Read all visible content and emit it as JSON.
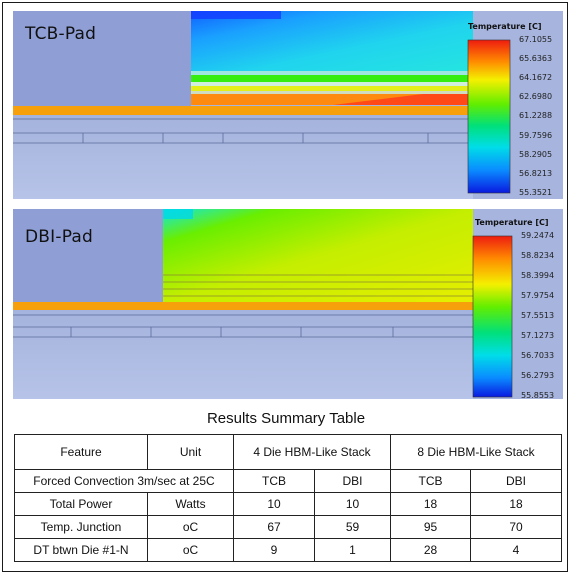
{
  "panels": [
    {
      "title": "TCB-Pad",
      "legend": {
        "title": "Temperature [C]",
        "ticks": [
          "67.1055",
          "65.6363",
          "64.1672",
          "62.6980",
          "61.2288",
          "59.7596",
          "58.2905",
          "56.8213",
          "55.3521"
        ]
      }
    },
    {
      "title": "DBI-Pad",
      "legend": {
        "title": "Temperature [C]",
        "ticks": [
          "59.2474",
          "58.8234",
          "58.3994",
          "57.9754",
          "57.5513",
          "57.1273",
          "56.7033",
          "56.2793",
          "55.8553"
        ]
      }
    }
  ],
  "table": {
    "title": "Results Summary Table",
    "headers": {
      "feature": "Feature",
      "unit": "Unit",
      "group4": "4 Die HBM-Like Stack",
      "group8": "8 Die HBM-Like Stack"
    },
    "subheader": {
      "condition": "Forced Convection 3m/sec at 25C",
      "cols": [
        "TCB",
        "DBI",
        "TCB",
        "DBI"
      ]
    },
    "rows": [
      {
        "feature": "Total Power",
        "unit": "Watts",
        "values": [
          "10",
          "10",
          "18",
          "18"
        ]
      },
      {
        "feature": "Temp. Junction",
        "unit": "oC",
        "values": [
          "67",
          "59",
          "95",
          "70"
        ]
      },
      {
        "feature": "DT btwn Die #1-N",
        "unit": "oC",
        "values": [
          "9",
          "1",
          "28",
          "4"
        ]
      }
    ]
  }
}
